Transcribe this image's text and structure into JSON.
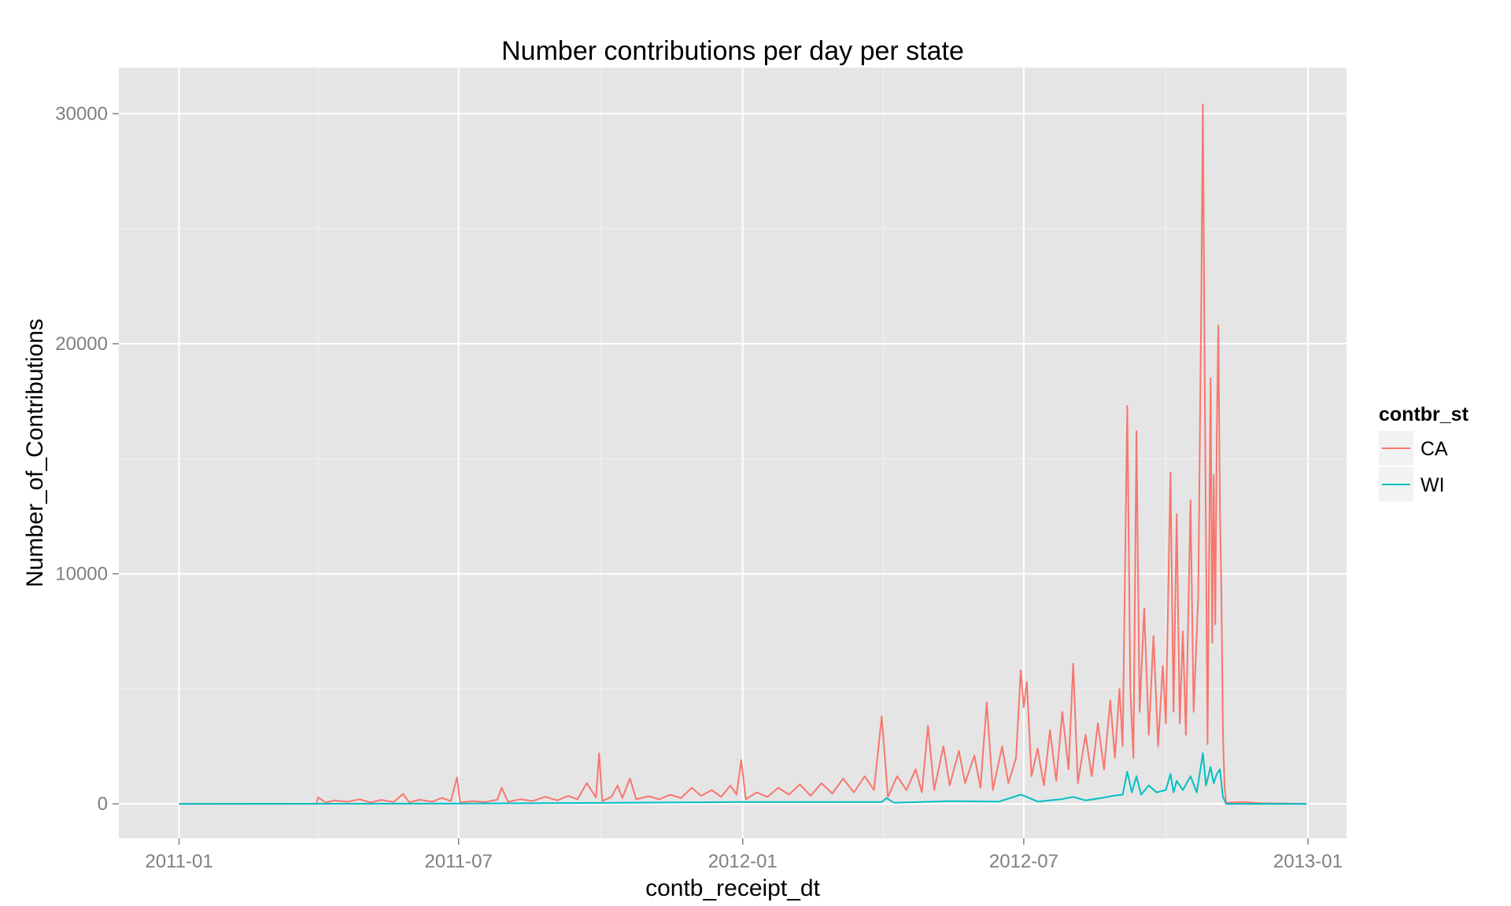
{
  "chart_data": {
    "type": "line",
    "title": "Number contributions per day per state",
    "xlabel": "contb_receipt_dt",
    "ylabel": "Number_of_Contributions",
    "x_type": "date",
    "xlim": [
      "2010-11-23",
      "2013-01-26"
    ],
    "ylim": [
      -1500,
      32000
    ],
    "x_ticks": [
      {
        "date": "2011-01-01",
        "label": "2011-01"
      },
      {
        "date": "2011-07-01",
        "label": "2011-07"
      },
      {
        "date": "2012-01-01",
        "label": "2012-01"
      },
      {
        "date": "2012-07-01",
        "label": "2012-07"
      },
      {
        "date": "2013-01-01",
        "label": "2013-01"
      }
    ],
    "x_minor_ticks": [
      "2011-04-01",
      "2011-10-01",
      "2012-04-01",
      "2012-10-01"
    ],
    "y_ticks": [
      0,
      10000,
      20000,
      30000
    ],
    "y_minor_ticks": [
      5000,
      15000,
      25000
    ],
    "grid": true,
    "legend": {
      "title": "contbr_st",
      "position": "right"
    },
    "series": [
      {
        "name": "CA",
        "color": "#F8766D",
        "points": [
          [
            "2011-01-01",
            0
          ],
          [
            "2011-03-31",
            0
          ],
          [
            "2011-04-01",
            280
          ],
          [
            "2011-04-06",
            60
          ],
          [
            "2011-04-12",
            150
          ],
          [
            "2011-04-20",
            90
          ],
          [
            "2011-04-28",
            200
          ],
          [
            "2011-05-05",
            60
          ],
          [
            "2011-05-12",
            170
          ],
          [
            "2011-05-20",
            80
          ],
          [
            "2011-05-26",
            430
          ],
          [
            "2011-05-30",
            70
          ],
          [
            "2011-06-06",
            180
          ],
          [
            "2011-06-14",
            90
          ],
          [
            "2011-06-20",
            260
          ],
          [
            "2011-06-26",
            120
          ],
          [
            "2011-06-30",
            1150
          ],
          [
            "2011-07-02",
            60
          ],
          [
            "2011-07-10",
            120
          ],
          [
            "2011-07-18",
            80
          ],
          [
            "2011-07-26",
            180
          ],
          [
            "2011-07-29",
            700
          ],
          [
            "2011-08-02",
            90
          ],
          [
            "2011-08-10",
            200
          ],
          [
            "2011-08-18",
            120
          ],
          [
            "2011-08-26",
            310
          ],
          [
            "2011-09-03",
            150
          ],
          [
            "2011-09-10",
            350
          ],
          [
            "2011-09-16",
            200
          ],
          [
            "2011-09-22",
            900
          ],
          [
            "2011-09-28",
            280
          ],
          [
            "2011-09-30",
            2200
          ],
          [
            "2011-10-02",
            120
          ],
          [
            "2011-10-08",
            300
          ],
          [
            "2011-10-12",
            800
          ],
          [
            "2011-10-15",
            250
          ],
          [
            "2011-10-20",
            1100
          ],
          [
            "2011-10-24",
            200
          ],
          [
            "2011-11-01",
            330
          ],
          [
            "2011-11-08",
            200
          ],
          [
            "2011-11-15",
            400
          ],
          [
            "2011-11-22",
            250
          ],
          [
            "2011-11-29",
            700
          ],
          [
            "2011-12-05",
            350
          ],
          [
            "2011-12-12",
            600
          ],
          [
            "2011-12-18",
            300
          ],
          [
            "2011-12-24",
            800
          ],
          [
            "2011-12-28",
            400
          ],
          [
            "2011-12-31",
            1900
          ],
          [
            "2012-01-03",
            200
          ],
          [
            "2012-01-10",
            500
          ],
          [
            "2012-01-17",
            300
          ],
          [
            "2012-01-24",
            700
          ],
          [
            "2012-01-31",
            400
          ],
          [
            "2012-02-07",
            850
          ],
          [
            "2012-02-14",
            350
          ],
          [
            "2012-02-21",
            900
          ],
          [
            "2012-02-28",
            450
          ],
          [
            "2012-03-06",
            1100
          ],
          [
            "2012-03-13",
            500
          ],
          [
            "2012-03-20",
            1200
          ],
          [
            "2012-03-26",
            600
          ],
          [
            "2012-03-31",
            3800
          ],
          [
            "2012-04-04",
            300
          ],
          [
            "2012-04-10",
            1200
          ],
          [
            "2012-04-16",
            600
          ],
          [
            "2012-04-22",
            1500
          ],
          [
            "2012-04-26",
            500
          ],
          [
            "2012-04-30",
            3400
          ],
          [
            "2012-05-04",
            600
          ],
          [
            "2012-05-10",
            2500
          ],
          [
            "2012-05-14",
            800
          ],
          [
            "2012-05-20",
            2300
          ],
          [
            "2012-05-24",
            900
          ],
          [
            "2012-05-30",
            2100
          ],
          [
            "2012-06-03",
            700
          ],
          [
            "2012-06-07",
            4400
          ],
          [
            "2012-06-11",
            600
          ],
          [
            "2012-06-17",
            2500
          ],
          [
            "2012-06-21",
            900
          ],
          [
            "2012-06-26",
            2000
          ],
          [
            "2012-06-29",
            5800
          ],
          [
            "2012-07-01",
            4200
          ],
          [
            "2012-07-03",
            5300
          ],
          [
            "2012-07-06",
            1200
          ],
          [
            "2012-07-10",
            2400
          ],
          [
            "2012-07-14",
            800
          ],
          [
            "2012-07-18",
            3200
          ],
          [
            "2012-07-22",
            1000
          ],
          [
            "2012-07-26",
            4000
          ],
          [
            "2012-07-30",
            1500
          ],
          [
            "2012-08-02",
            6100
          ],
          [
            "2012-08-05",
            900
          ],
          [
            "2012-08-10",
            3000
          ],
          [
            "2012-08-14",
            1200
          ],
          [
            "2012-08-18",
            3500
          ],
          [
            "2012-08-22",
            1500
          ],
          [
            "2012-08-26",
            4500
          ],
          [
            "2012-08-29",
            2000
          ],
          [
            "2012-09-01",
            5000
          ],
          [
            "2012-09-03",
            2500
          ],
          [
            "2012-09-06",
            17300
          ],
          [
            "2012-09-08",
            5000
          ],
          [
            "2012-09-10",
            2000
          ],
          [
            "2012-09-12",
            16200
          ],
          [
            "2012-09-14",
            4000
          ],
          [
            "2012-09-17",
            8500
          ],
          [
            "2012-09-20",
            3000
          ],
          [
            "2012-09-23",
            7300
          ],
          [
            "2012-09-26",
            2500
          ],
          [
            "2012-09-29",
            6000
          ],
          [
            "2012-10-01",
            3500
          ],
          [
            "2012-10-04",
            14400
          ],
          [
            "2012-10-06",
            4000
          ],
          [
            "2012-10-08",
            12600
          ],
          [
            "2012-10-10",
            3500
          ],
          [
            "2012-10-12",
            7500
          ],
          [
            "2012-10-14",
            3000
          ],
          [
            "2012-10-17",
            13200
          ],
          [
            "2012-10-19",
            4000
          ],
          [
            "2012-10-22",
            9000
          ],
          [
            "2012-10-24",
            22200
          ],
          [
            "2012-10-25",
            30400
          ],
          [
            "2012-10-26",
            20000
          ],
          [
            "2012-10-28",
            2600
          ],
          [
            "2012-10-30",
            18500
          ],
          [
            "2012-10-31",
            7000
          ],
          [
            "2012-11-01",
            14300
          ],
          [
            "2012-11-02",
            7800
          ],
          [
            "2012-11-03",
            16200
          ],
          [
            "2012-11-04",
            20800
          ],
          [
            "2012-11-05",
            13000
          ],
          [
            "2012-11-06",
            8900
          ],
          [
            "2012-11-07",
            3000
          ],
          [
            "2012-11-08",
            800
          ],
          [
            "2012-11-09",
            50
          ],
          [
            "2012-11-20",
            80
          ],
          [
            "2012-12-01",
            30
          ],
          [
            "2012-12-31",
            0
          ]
        ]
      },
      {
        "name": "WI",
        "color": "#00BFC4",
        "points": [
          [
            "2011-01-01",
            0
          ],
          [
            "2011-06-30",
            10
          ],
          [
            "2011-09-30",
            40
          ],
          [
            "2011-12-31",
            80
          ],
          [
            "2012-03-31",
            80
          ],
          [
            "2012-04-03",
            250
          ],
          [
            "2012-04-08",
            50
          ],
          [
            "2012-05-15",
            120
          ],
          [
            "2012-06-15",
            100
          ],
          [
            "2012-06-29",
            400
          ],
          [
            "2012-07-03",
            300
          ],
          [
            "2012-07-10",
            100
          ],
          [
            "2012-07-25",
            200
          ],
          [
            "2012-08-02",
            300
          ],
          [
            "2012-08-10",
            150
          ],
          [
            "2012-08-20",
            250
          ],
          [
            "2012-08-28",
            350
          ],
          [
            "2012-09-03",
            400
          ],
          [
            "2012-09-06",
            1400
          ],
          [
            "2012-09-09",
            500
          ],
          [
            "2012-09-12",
            1200
          ],
          [
            "2012-09-15",
            400
          ],
          [
            "2012-09-20",
            800
          ],
          [
            "2012-09-25",
            500
          ],
          [
            "2012-10-01",
            600
          ],
          [
            "2012-10-04",
            1300
          ],
          [
            "2012-10-06",
            500
          ],
          [
            "2012-10-08",
            1000
          ],
          [
            "2012-10-12",
            600
          ],
          [
            "2012-10-17",
            1200
          ],
          [
            "2012-10-21",
            500
          ],
          [
            "2012-10-25",
            2200
          ],
          [
            "2012-10-27",
            800
          ],
          [
            "2012-10-30",
            1600
          ],
          [
            "2012-11-01",
            900
          ],
          [
            "2012-11-03",
            1300
          ],
          [
            "2012-11-05",
            1500
          ],
          [
            "2012-11-07",
            300
          ],
          [
            "2012-11-09",
            0
          ],
          [
            "2012-12-31",
            0
          ]
        ]
      }
    ]
  }
}
